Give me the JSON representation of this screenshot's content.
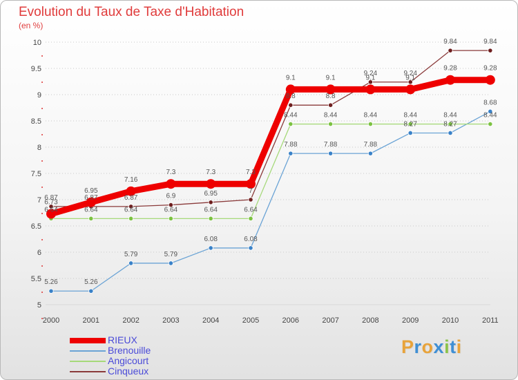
{
  "header": {
    "title": "Evolution du Taux de Taxe d'Habitation",
    "unit": "(en %)"
  },
  "logo": {
    "text": "Proxiti",
    "colors": [
      "#e8a33a",
      "#3f8fd4",
      "#e8a33a",
      "#3f8fd4",
      "#8bc34a",
      "#3f8fd4",
      "#e8a33a"
    ]
  },
  "chart_data": {
    "type": "line",
    "title": "Evolution du Taux de Taxe d'Habitation",
    "ylabel": "(en %)",
    "xlabel": "",
    "categories": [
      "2000",
      "2001",
      "2002",
      "2003",
      "2004",
      "2005",
      "2006",
      "2007",
      "2008",
      "2009",
      "2010",
      "2011"
    ],
    "ylim": [
      5,
      10
    ],
    "yticks": [
      "5",
      "5.5",
      "6",
      "6.5",
      "7",
      "7.5",
      "8",
      "8.5",
      "9",
      "9.5",
      "10"
    ],
    "grid": "horizontal dotted",
    "legend_position": "bottom-left",
    "series": [
      {
        "name": "RIEUX",
        "color": "#ee0000",
        "values": [
          6.73,
          6.95,
          7.16,
          7.3,
          7.3,
          7.3,
          9.1,
          9.1,
          9.1,
          9.1,
          9.28,
          9.28
        ],
        "labels": [
          "6.73",
          "6.95",
          "7.16",
          "7.3",
          "7.3",
          "7.3",
          "9.1",
          "9.1",
          "9.1",
          "9.1",
          "9.28",
          "9.28"
        ]
      },
      {
        "name": "Brenouille",
        "color": "#6aa3d5",
        "marker": "#3a82c8",
        "values": [
          5.26,
          5.26,
          5.79,
          5.79,
          6.08,
          6.08,
          7.88,
          7.88,
          7.88,
          8.27,
          8.27,
          8.68
        ],
        "labels": [
          "5.26",
          "5.26",
          "5.79",
          "5.79",
          "6.08",
          "6.08",
          "7.88",
          "7.88",
          "7.88",
          "8.27",
          "8.27",
          "8.68"
        ]
      },
      {
        "name": "Angicourt",
        "color": "#a6d97a",
        "marker": "#7cc242",
        "values": [
          6.64,
          6.64,
          6.64,
          6.64,
          6.64,
          6.64,
          8.44,
          8.44,
          8.44,
          8.44,
          8.44,
          8.44
        ],
        "labels": [
          "6.64",
          "6.64",
          "6.64",
          "6.64",
          "6.64",
          "6.64",
          "8.44",
          "8.44",
          "8.44",
          "8.44",
          "8.44",
          "8.44"
        ]
      },
      {
        "name": "Cinqueux",
        "color": "#8a3a3a",
        "marker": "#6e1f1f",
        "values": [
          6.87,
          6.87,
          6.87,
          6.9,
          6.95,
          7.0,
          8.8,
          8.8,
          9.24,
          9.24,
          9.84,
          9.84
        ],
        "labels": [
          "6.87",
          "6.87",
          "6.87",
          "6.9",
          "6.95",
          "7",
          "8.8",
          "8.8",
          "9.24",
          "9.24",
          "9.84",
          "9.84"
        ]
      }
    ]
  }
}
